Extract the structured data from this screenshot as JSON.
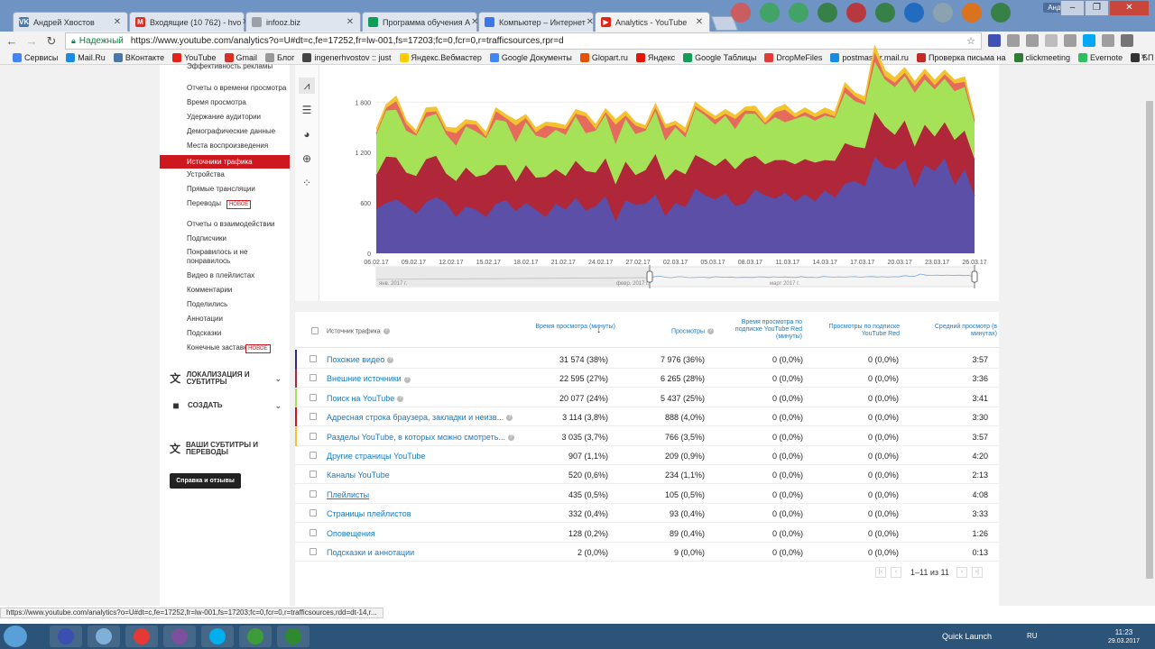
{
  "browser": {
    "tabs": [
      {
        "label": "Андрей Хвостов",
        "icon": "vk-icon",
        "color": "#4a76a8",
        "glyph": "VK"
      },
      {
        "label": "Входящие (10 762) - hvo",
        "icon": "gmail-icon",
        "color": "#d93025",
        "glyph": "M"
      },
      {
        "label": "infooz.biz",
        "icon": "page-icon",
        "color": "#9aa0a6",
        "glyph": ""
      },
      {
        "label": "Программа обучения А",
        "icon": "sheets-icon",
        "color": "#0f9d58",
        "glyph": ""
      },
      {
        "label": "Компьютер – Интернет",
        "icon": "globe-icon",
        "color": "#3b78e7",
        "glyph": ""
      },
      {
        "label": "Analytics - YouTube",
        "icon": "youtube-icon",
        "color": "#e62117",
        "glyph": "▶"
      }
    ],
    "active_tab": 5,
    "user_badge": "Андрей",
    "address": {
      "secure_label": "Надежный",
      "url": "https://www.youtube.com/analytics?o=U#dt=c,fe=17252,fr=lw-001,fs=17203;fc=0,fcr=0,r=trafficsources,rpr=d"
    },
    "bookmarks": [
      {
        "label": "Сервисы",
        "color": "#4285f4"
      },
      {
        "label": "Mail.Ru",
        "color": "#168de2"
      },
      {
        "label": "ВКонтакте",
        "color": "#4a76a8"
      },
      {
        "label": "YouTube",
        "color": "#e62117"
      },
      {
        "label": "Gmail",
        "color": "#d93025"
      },
      {
        "label": "Блог",
        "color": "#999999"
      },
      {
        "label": "ingenerhvostov :: just",
        "color": "#444444"
      },
      {
        "label": "Яндекс.Вебмастер",
        "color": "#ffcc00"
      },
      {
        "label": "Google Документы",
        "color": "#4285f4"
      },
      {
        "label": "Glopart.ru",
        "color": "#e65100"
      },
      {
        "label": "Яндекс",
        "color": "#e61400"
      },
      {
        "label": "Google Таблицы",
        "color": "#0f9d58"
      },
      {
        "label": "DropMeFiles",
        "color": "#e53935"
      },
      {
        "label": "postmaster.mail.ru",
        "color": "#168de2"
      },
      {
        "label": "Проверка письма на",
        "color": "#c62828"
      },
      {
        "label": "clickmeeting",
        "color": "#2e7d32"
      },
      {
        "label": "Evernote",
        "color": "#2dbe60"
      },
      {
        "label": "БП",
        "color": "#333333"
      }
    ],
    "bookmarks_more": "»",
    "status_url": "https://www.youtube.com/analytics?o=U#dt=c,fe=17252,fr=lw-001,fs=17203;fc=0,fcr=0,r=trafficsources,rdd=dt-14,r..."
  },
  "sidebar": {
    "items": [
      {
        "label": "Эффективность рекламы",
        "active": false
      },
      {
        "label": "Отчеты о времени просмотра",
        "active": false
      },
      {
        "label": "Время просмотра",
        "active": false
      },
      {
        "label": "Удержание аудитории",
        "active": false
      },
      {
        "label": "Демографические данные",
        "active": false
      },
      {
        "label": "Места воспроизведения",
        "active": false
      },
      {
        "label": "Источники трафика",
        "active": true
      },
      {
        "label": "Устройства",
        "active": false
      },
      {
        "label": "Прямые трансляции",
        "active": false
      },
      {
        "label": "Переводы",
        "active": false,
        "badge": "НОВОЕ"
      },
      {
        "label": "Отчеты о взаимодействии",
        "active": false
      },
      {
        "label": "Подписчики",
        "active": false
      },
      {
        "label": "Понравилось и не понравилось",
        "active": false
      },
      {
        "label": "Видео в плейлистах",
        "active": false
      },
      {
        "label": "Комментарии",
        "active": false
      },
      {
        "label": "Поделились",
        "active": false
      },
      {
        "label": "Аннотации",
        "active": false
      },
      {
        "label": "Подсказки",
        "active": false
      },
      {
        "label": "Конечные заставки",
        "active": false,
        "badge": "НОВОЕ"
      }
    ],
    "sections": [
      {
        "label": "Локализация и субтитры",
        "icon": "translate-icon"
      },
      {
        "label": "Создать",
        "icon": "video-camera-icon"
      },
      {
        "label": "Ваши субтитры и переводы",
        "icon": "translate-icon"
      }
    ],
    "help_button": "Справка и отзывы"
  },
  "chart_data": {
    "type": "area",
    "stacked": true,
    "y_ticks": [
      "0",
      "600",
      "1 200",
      "1 800"
    ],
    "ylim": [
      0,
      2200
    ],
    "x_labels": [
      "06.02.17",
      "09.02.17",
      "12.02.17",
      "15.02.17",
      "18.02.17",
      "21.02.17",
      "24.02.17",
      "27.02.17",
      "02.03.17",
      "05.03.17",
      "08.03.17",
      "11.03.17",
      "14.03.17",
      "17.03.17",
      "20.03.17",
      "23.03.17",
      "26.03.17"
    ],
    "series": [
      {
        "color": "#5b4fa8",
        "values": [
          530,
          600,
          640,
          560,
          470,
          610,
          670,
          600,
          430,
          560,
          520,
          430,
          590,
          630,
          500,
          600,
          520,
          430,
          590,
          520,
          660,
          510,
          560,
          680,
          380,
          630,
          580,
          590,
          700,
          440,
          600,
          550,
          770,
          690,
          640,
          710,
          560,
          600,
          760,
          690,
          650,
          720,
          620,
          700,
          620,
          750,
          660,
          830,
          860,
          800,
          1150,
          1030,
          1000,
          1110,
          780,
          1050,
          980,
          1130,
          810,
          1000,
          680
        ]
      },
      {
        "color": "#b0273a",
        "values": [
          400,
          550,
          500,
          400,
          450,
          510,
          490,
          350,
          430,
          460,
          390,
          510,
          460,
          420,
          350,
          450,
          380,
          480,
          410,
          400,
          440,
          470,
          400,
          450,
          440,
          460,
          350,
          400,
          480,
          430,
          400,
          390,
          400,
          420,
          400,
          420,
          440,
          520,
          400,
          370,
          460,
          390,
          440,
          420,
          460,
          360,
          440,
          480,
          410,
          450,
          530,
          480,
          410,
          470,
          490,
          480,
          410,
          430,
          540,
          460,
          440
        ]
      },
      {
        "color": "#a5e257",
        "values": [
          480,
          550,
          570,
          500,
          480,
          500,
          500,
          470,
          420,
          490,
          540,
          430,
          540,
          520,
          470,
          510,
          500,
          460,
          470,
          490,
          530,
          450,
          500,
          520,
          480,
          510,
          490,
          470,
          510,
          470,
          500,
          440,
          550,
          530,
          490,
          510,
          480,
          540,
          500,
          470,
          510,
          450,
          540,
          520,
          500,
          530,
          510,
          600,
          540,
          520,
          600,
          560,
          570,
          530,
          640,
          540,
          560,
          520,
          580,
          520,
          430
        ]
      },
      {
        "color": "#e56b5c",
        "values": [
          20,
          30,
          100,
          80,
          20,
          60,
          30,
          40,
          150,
          30,
          80,
          20,
          100,
          40,
          200,
          50,
          40,
          150,
          30,
          70,
          30,
          200,
          20,
          30,
          230,
          40,
          100,
          20,
          40,
          150,
          30,
          50,
          30,
          30,
          60,
          20,
          120,
          40,
          30,
          20,
          60,
          150,
          20,
          40,
          40,
          30,
          20,
          70,
          60,
          30,
          110,
          40,
          50,
          40,
          80,
          70,
          50,
          50,
          90,
          60,
          30
        ]
      },
      {
        "color": "#f4c430",
        "values": [
          50,
          40,
          60,
          40,
          40,
          50,
          50,
          40,
          60,
          50,
          40,
          50,
          40,
          40,
          60,
          40,
          50,
          40,
          50,
          40,
          50,
          40,
          50,
          40,
          60,
          50,
          40,
          40,
          50,
          40,
          40,
          60,
          50,
          40,
          40,
          50,
          40,
          40,
          60,
          50,
          40,
          60,
          40,
          50,
          40,
          60,
          50,
          50,
          40,
          60,
          80,
          70,
          60,
          60,
          50,
          50,
          60,
          50,
          40,
          60,
          30
        ]
      }
    ],
    "timeline_labels": [
      "янв. 2017 г.",
      "февр. 2017 г.",
      "март 2017 г."
    ]
  },
  "chart_types": [
    {
      "icon": "line-chart-icon",
      "glyph": "⩘",
      "active": true
    },
    {
      "icon": "bar-chart-icon",
      "glyph": "☰",
      "active": false
    },
    {
      "icon": "pie-chart-icon",
      "glyph": "◕",
      "active": false
    },
    {
      "icon": "globe-map-icon",
      "glyph": "⊕",
      "active": false
    },
    {
      "icon": "bubble-chart-icon",
      "glyph": "⁘",
      "active": false
    }
  ],
  "table": {
    "headers": {
      "source": "Источник трафика",
      "watch_time": "Время просмотра (минуты)",
      "views": "Просмотры",
      "red_watch_time": "Время просмотра по подписке YouTube Red (минуты)",
      "red_views": "Просмотры по подписке YouTube Red",
      "avg_duration": "Средний просмотр (в минутах)",
      "sort_arrow": "↓"
    },
    "rows": [
      {
        "source": "Похожие видео",
        "color": "#2d2a8c",
        "watch_time": "31 574 (38%)",
        "views": "7 976 (36%)",
        "red_watch_time": "0 (0,0%)",
        "red_views": "0 (0,0%)",
        "avg": "3:57"
      },
      {
        "source": "Внешние источники",
        "color": "#b0273a",
        "watch_time": "22 595 (27%)",
        "views": "6 265 (28%)",
        "red_watch_time": "0 (0,0%)",
        "red_views": "0 (0,0%)",
        "avg": "3:36"
      },
      {
        "source": "Поиск на YouTube",
        "color": "#a5e257",
        "watch_time": "20 077 (24%)",
        "views": "5 437 (25%)",
        "red_watch_time": "0 (0,0%)",
        "red_views": "0 (0,0%)",
        "avg": "3:41"
      },
      {
        "source": "Адресная строка браузера, закладки и неизв...",
        "color": "#cc181e",
        "watch_time": "3 114 (3,8%)",
        "views": "888 (4,0%)",
        "red_watch_time": "0 (0,0%)",
        "red_views": "0 (0,0%)",
        "avg": "3:30"
      },
      {
        "source": "Разделы YouTube, в которых можно смотреть...",
        "color": "#f4c430",
        "watch_time": "3 035 (3,7%)",
        "views": "766 (3,5%)",
        "red_watch_time": "0 (0,0%)",
        "red_views": "0 (0,0%)",
        "avg": "3:57"
      },
      {
        "source": "Другие страницы YouTube",
        "color": "",
        "watch_time": "907 (1,1%)",
        "views": "209 (0,9%)",
        "red_watch_time": "0 (0,0%)",
        "red_views": "0 (0,0%)",
        "avg": "4:20"
      },
      {
        "source": "Каналы YouTube",
        "color": "",
        "watch_time": "520 (0,6%)",
        "views": "234 (1,1%)",
        "red_watch_time": "0 (0,0%)",
        "red_views": "0 (0,0%)",
        "avg": "2:13"
      },
      {
        "source": "Плейлисты",
        "color": "",
        "watch_time": "435 (0,5%)",
        "views": "105 (0,5%)",
        "red_watch_time": "0 (0,0%)",
        "red_views": "0 (0,0%)",
        "avg": "4:08"
      },
      {
        "source": "Страницы плейлистов",
        "color": "",
        "watch_time": "332 (0,4%)",
        "views": "93 (0,4%)",
        "red_watch_time": "0 (0,0%)",
        "red_views": "0 (0,0%)",
        "avg": "3:33"
      },
      {
        "source": "Оповещения",
        "color": "",
        "watch_time": "128 (0,2%)",
        "views": "89 (0,4%)",
        "red_watch_time": "0 (0,0%)",
        "red_views": "0 (0,0%)",
        "avg": "1:26"
      },
      {
        "source": "Подсказки и аннотации",
        "color": "",
        "watch_time": "2 (0,0%)",
        "views": "9 (0,0%)",
        "red_watch_time": "0 (0,0%)",
        "red_views": "0 (0,0%)",
        "avg": "0:13"
      }
    ],
    "pagination": "1–11 из 11"
  },
  "taskbar": {
    "apps": [
      {
        "icon": "save-icon",
        "color": "#3a4fb0"
      },
      {
        "icon": "network-icon",
        "color": "#7fb0d8"
      },
      {
        "icon": "chrome-icon",
        "color": "#e53935"
      },
      {
        "icon": "viber-icon",
        "color": "#7b519d"
      },
      {
        "icon": "skype-icon",
        "color": "#00aff0"
      },
      {
        "icon": "camtasia-icon",
        "color": "#3e9b3a"
      },
      {
        "icon": "camtasia-recorder-icon",
        "color": "#2f8a2f"
      }
    ],
    "quick_launch": "Quick Launch",
    "lang": "RU",
    "time": "11:23",
    "date": "29.03.2017"
  }
}
